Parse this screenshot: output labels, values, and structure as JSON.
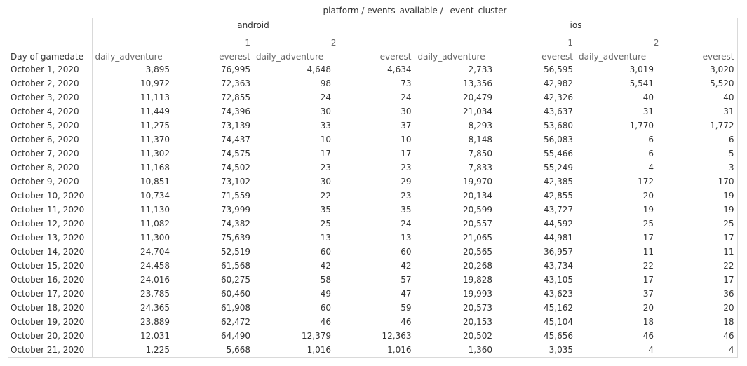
{
  "header": {
    "title": "platform / events_available / _event_cluster",
    "row_label": "Day of gamedate"
  },
  "platforms": [
    {
      "name": "android",
      "events": [
        "1",
        "2"
      ]
    },
    {
      "name": "ios",
      "events": [
        "1",
        "2"
      ]
    }
  ],
  "clusters": [
    "daily_adventure",
    "everest"
  ],
  "rows": [
    {
      "day": "October 1, 2020",
      "values": [
        "3,895",
        "76,995",
        "4,648",
        "4,634",
        "2,733",
        "56,595",
        "3,019",
        "3,020"
      ]
    },
    {
      "day": "October 2, 2020",
      "values": [
        "10,972",
        "72,363",
        "98",
        "73",
        "13,356",
        "42,982",
        "5,541",
        "5,520"
      ]
    },
    {
      "day": "October 3, 2020",
      "values": [
        "11,113",
        "72,855",
        "24",
        "24",
        "20,479",
        "42,326",
        "40",
        "40"
      ]
    },
    {
      "day": "October 4, 2020",
      "values": [
        "11,449",
        "74,396",
        "30",
        "30",
        "21,034",
        "43,637",
        "31",
        "31"
      ]
    },
    {
      "day": "October 5, 2020",
      "values": [
        "11,275",
        "73,139",
        "33",
        "37",
        "8,293",
        "53,680",
        "1,770",
        "1,772"
      ]
    },
    {
      "day": "October 6, 2020",
      "values": [
        "11,370",
        "74,437",
        "10",
        "10",
        "8,148",
        "56,083",
        "6",
        "6"
      ]
    },
    {
      "day": "October 7, 2020",
      "values": [
        "11,302",
        "74,575",
        "17",
        "17",
        "7,850",
        "55,466",
        "6",
        "5"
      ]
    },
    {
      "day": "October 8, 2020",
      "values": [
        "11,168",
        "74,502",
        "23",
        "23",
        "7,833",
        "55,249",
        "4",
        "3"
      ]
    },
    {
      "day": "October 9, 2020",
      "values": [
        "10,851",
        "73,102",
        "30",
        "29",
        "19,970",
        "42,385",
        "172",
        "170"
      ]
    },
    {
      "day": "October 10, 2020",
      "values": [
        "10,734",
        "71,559",
        "22",
        "23",
        "20,134",
        "42,855",
        "20",
        "19"
      ]
    },
    {
      "day": "October 11, 2020",
      "values": [
        "11,130",
        "73,999",
        "35",
        "35",
        "20,599",
        "43,727",
        "19",
        "19"
      ]
    },
    {
      "day": "October 12, 2020",
      "values": [
        "11,082",
        "74,382",
        "25",
        "24",
        "20,557",
        "44,592",
        "25",
        "25"
      ]
    },
    {
      "day": "October 13, 2020",
      "values": [
        "11,300",
        "75,639",
        "13",
        "13",
        "21,065",
        "44,981",
        "17",
        "17"
      ]
    },
    {
      "day": "October 14, 2020",
      "values": [
        "24,704",
        "52,519",
        "60",
        "60",
        "20,565",
        "36,957",
        "11",
        "11"
      ]
    },
    {
      "day": "October 15, 2020",
      "values": [
        "24,458",
        "61,568",
        "42",
        "42",
        "20,268",
        "43,734",
        "22",
        "22"
      ]
    },
    {
      "day": "October 16, 2020",
      "values": [
        "24,016",
        "60,275",
        "58",
        "57",
        "19,828",
        "43,105",
        "17",
        "17"
      ]
    },
    {
      "day": "October 17, 2020",
      "values": [
        "23,785",
        "60,460",
        "49",
        "47",
        "19,993",
        "43,623",
        "37",
        "36"
      ]
    },
    {
      "day": "October 18, 2020",
      "values": [
        "24,365",
        "61,908",
        "60",
        "59",
        "20,573",
        "45,162",
        "20",
        "20"
      ]
    },
    {
      "day": "October 19, 2020",
      "values": [
        "23,889",
        "62,472",
        "46",
        "46",
        "20,153",
        "45,104",
        "18",
        "18"
      ]
    },
    {
      "day": "October 20, 2020",
      "values": [
        "12,031",
        "64,490",
        "12,379",
        "12,363",
        "20,502",
        "45,656",
        "46",
        "46"
      ]
    },
    {
      "day": "October 21, 2020",
      "values": [
        "1,225",
        "5,668",
        "1,016",
        "1,016",
        "1,360",
        "3,035",
        "4",
        "4"
      ]
    }
  ]
}
